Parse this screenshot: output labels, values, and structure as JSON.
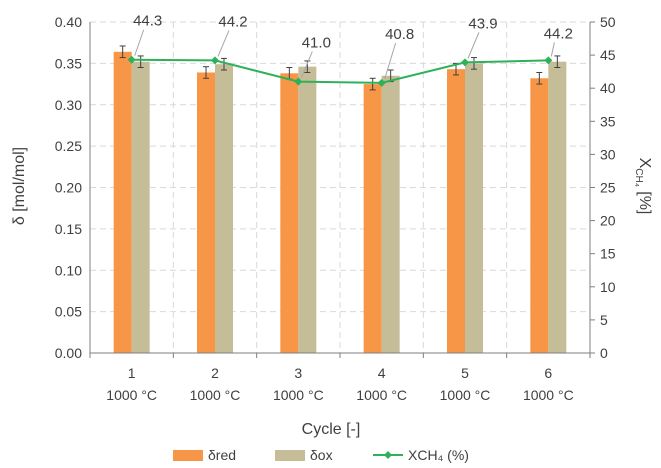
{
  "chart_data": {
    "type": "bar",
    "categories": [
      "1",
      "2",
      "3",
      "4",
      "5",
      "6"
    ],
    "category_sublabels": [
      "1000 °C",
      "1000 °C",
      "1000 °C",
      "1000 °C",
      "1000 °C",
      "1000 °C"
    ],
    "xlabel": "Cycle [-]",
    "ylabel": "δ [mol/mol]",
    "y2label_main": "X",
    "y2label_sub": "CH₄",
    "y2label_unit": " [%]",
    "ylim": [
      0,
      0.4
    ],
    "y2lim": [
      0,
      50
    ],
    "yticks": [
      "0.00",
      "0.05",
      "0.10",
      "0.15",
      "0.20",
      "0.25",
      "0.30",
      "0.35",
      "0.40"
    ],
    "y2ticks": [
      "0",
      "5",
      "10",
      "15",
      "20",
      "25",
      "30",
      "35",
      "40",
      "45",
      "50"
    ],
    "grid": true,
    "legend_position": "bottom",
    "series": [
      {
        "name": "δred",
        "kind": "bar",
        "axis": "left",
        "color": "#f79646",
        "values": [
          0.364,
          0.339,
          0.338,
          0.325,
          0.343,
          0.332
        ],
        "errors": [
          0.007,
          0.007,
          0.007,
          0.007,
          0.007,
          0.007
        ]
      },
      {
        "name": "δox",
        "kind": "bar",
        "axis": "left",
        "color": "#c4bd97",
        "values": [
          0.352,
          0.349,
          0.346,
          0.335,
          0.35,
          0.352
        ],
        "errors": [
          0.007,
          0.007,
          0.007,
          0.007,
          0.007,
          0.007
        ]
      },
      {
        "name": "XCH₄ (%)",
        "kind": "line",
        "axis": "right",
        "color": "#2eb15a",
        "values": [
          44.3,
          44.2,
          41.0,
          40.8,
          43.9,
          44.2
        ],
        "errors": [
          0.5,
          0.5,
          0.5,
          0.5,
          0.5,
          0.5
        ],
        "labels": [
          "44.3",
          "44.2",
          "41.0",
          "40.8",
          "43.9",
          "44.2"
        ]
      }
    ]
  }
}
